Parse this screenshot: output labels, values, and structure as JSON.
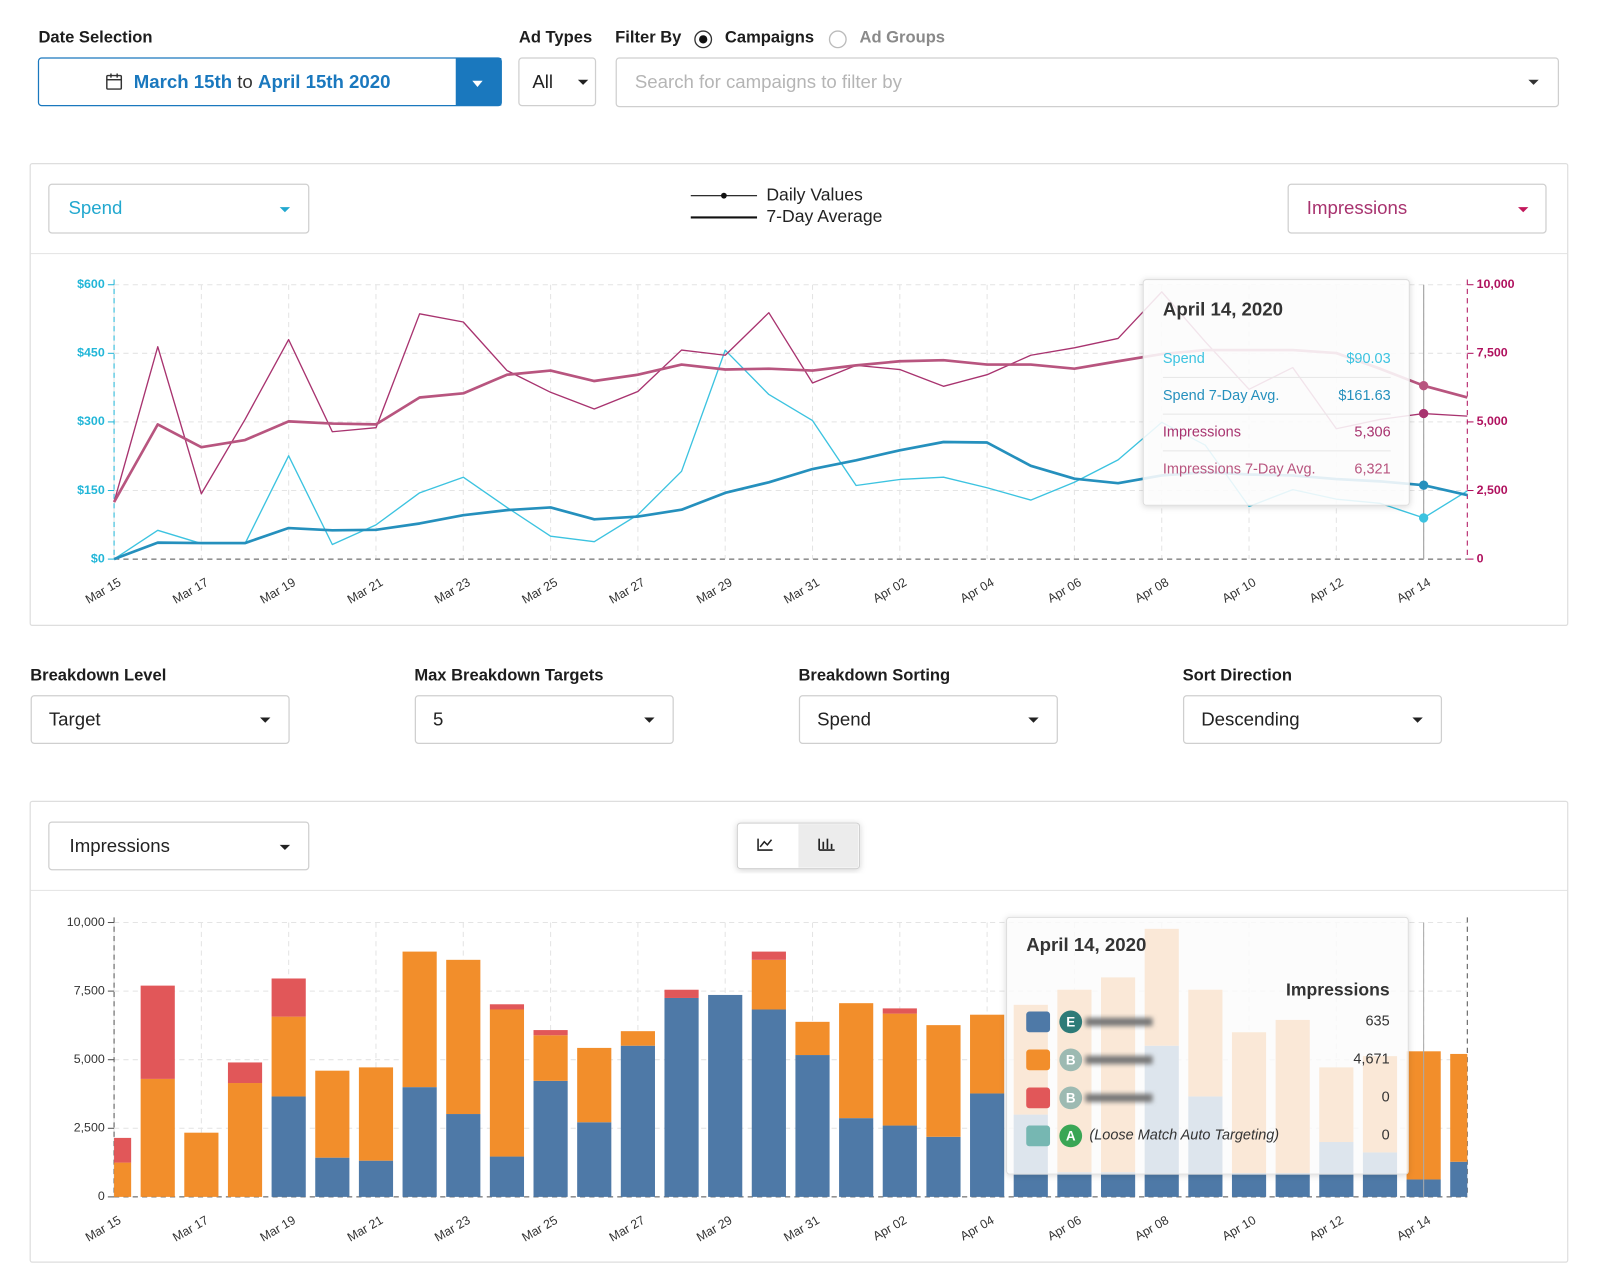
{
  "controls": {
    "date_selection": {
      "label": "Date Selection",
      "start": "March 15th",
      "separator": "to",
      "end": "April 15th 2020"
    },
    "ad_types": {
      "label": "Ad Types",
      "value": "All"
    },
    "filter_by": {
      "label": "Filter By",
      "options": [
        "Campaigns",
        "Ad Groups"
      ],
      "selected": 0,
      "placeholder": "Search for campaigns to filter by"
    },
    "breakdown": [
      {
        "label": "Breakdown Level",
        "value": "Target"
      },
      {
        "label": "Max Breakdown Targets",
        "value": "5"
      },
      {
        "label": "Breakdown Sorting",
        "value": "Spend"
      },
      {
        "label": "Sort Direction",
        "value": "Descending"
      }
    ]
  },
  "chart_data": [
    {
      "type": "line",
      "metric_left": "Spend",
      "metric_right": "Impressions",
      "legend": [
        "Daily Values",
        "7-Day Average"
      ],
      "categories": [
        "Mar 15",
        null,
        "Mar 17",
        null,
        "Mar 19",
        null,
        "Mar 21",
        null,
        "Mar 23",
        null,
        "Mar 25",
        null,
        "Mar 27",
        null,
        "Mar 29",
        null,
        "Mar 31",
        null,
        "Apr 02",
        null,
        "Apr 04",
        null,
        "Apr 06",
        null,
        "Apr 08",
        null,
        "Apr 10",
        null,
        "Apr 12",
        null,
        "Apr 14",
        null
      ],
      "series": [
        {
          "name": "Spend",
          "color": "#3cc3e0",
          "values": [
            0,
            63,
            34,
            34,
            226,
            32,
            75,
            145,
            179,
            113,
            50,
            38,
            97,
            192,
            457,
            360,
            303,
            161,
            174,
            179,
            156,
            129,
            168,
            217,
            299,
            249,
            115,
            152,
            131,
            122,
            90.03,
            149
          ]
        },
        {
          "name": "Spend 7-Day Avg.",
          "color": "#2590bd",
          "values": [
            0,
            36,
            35,
            35,
            68,
            63,
            64,
            78,
            96,
            107,
            113,
            87,
            93,
            108,
            145,
            168,
            197,
            216,
            238,
            256,
            255,
            204,
            176,
            166,
            183,
            190,
            185,
            183,
            175,
            170,
            161.63,
            140
          ]
        },
        {
          "name": "Impressions",
          "color": "#a8336f",
          "axis": "y2",
          "values": [
            2080,
            7740,
            2380,
            5090,
            8000,
            4640,
            4790,
            8940,
            8640,
            6870,
            6080,
            5470,
            6110,
            7620,
            7430,
            8980,
            6420,
            7060,
            6910,
            6300,
            6720,
            7430,
            7700,
            8040,
            9740,
            7920,
            6190,
            6980,
            4750,
            5090,
            5306,
            5210
          ]
        },
        {
          "name": "Impressions 7-Day Avg.",
          "color": "#b8557f",
          "axis": "y2",
          "values": [
            2080,
            4910,
            4080,
            4340,
            5020,
            4940,
            4910,
            5890,
            6040,
            6720,
            6870,
            6490,
            6720,
            7090,
            6910,
            6940,
            6870,
            7060,
            7210,
            7250,
            7090,
            7090,
            6940,
            7210,
            7470,
            7620,
            7620,
            7620,
            7510,
            6940,
            6321,
            5890
          ]
        }
      ],
      "ylim": [
        0,
        600
      ],
      "yticks": [
        {
          "value": 0,
          "label": "$0"
        },
        {
          "value": 150,
          "label": "$150"
        },
        {
          "value": 300,
          "label": "$300"
        },
        {
          "value": 450,
          "label": "$450"
        },
        {
          "value": 600,
          "label": "$600"
        }
      ],
      "y2lim": [
        0,
        10000
      ],
      "y2ticks": [
        0,
        {
          "value": 2500,
          "label": "2,500"
        },
        {
          "value": 5000,
          "label": "5,000"
        },
        {
          "value": 7500,
          "label": "7,500"
        },
        {
          "value": 10000,
          "label": "10,000"
        }
      ],
      "grid": true,
      "tooltip": {
        "title": "April 14, 2020",
        "values": [
          "$90.03",
          "$161.63",
          "5,306",
          "6,321"
        ]
      }
    },
    {
      "type": "bar",
      "stacked": true,
      "metric": "Impressions",
      "categories": [
        "Mar 15",
        null,
        "Mar 17",
        null,
        "Mar 19",
        null,
        "Mar 21",
        null,
        "Mar 23",
        null,
        "Mar 25",
        null,
        "Mar 27",
        null,
        "Mar 29",
        null,
        "Mar 31",
        null,
        "Apr 02",
        null,
        "Apr 04",
        null,
        "Apr 06",
        null,
        "Apr 08",
        null,
        "Apr 10",
        null,
        "Apr 12",
        null,
        "Apr 14",
        null
      ],
      "series": [
        {
          "badge": "E",
          "badge_color": "#2e7b78",
          "color": "#4e79a7",
          "values": [
            0,
            0,
            0,
            0,
            3660,
            1430,
            1320,
            4000,
            3020,
            1470,
            4230,
            2720,
            5510,
            7250,
            7360,
            6830,
            5170,
            2870,
            2600,
            2190,
            3770,
            3000,
            900,
            900,
            5510,
            3660,
            870,
            870,
            2000,
            1620,
            635,
            1280
          ]
        },
        {
          "badge": "B",
          "badge_color": "#9dbab2",
          "color": "#f28e2b",
          "values": [
            1250,
            4300,
            2340,
            4150,
            2910,
            3170,
            3400,
            4940,
            5620,
            5360,
            1660,
            2710,
            530,
            0,
            0,
            1810,
            1210,
            4190,
            4080,
            4070,
            2870,
            4000,
            6650,
            7100,
            4260,
            3890,
            5130,
            5580,
            2720,
            3510,
            4671,
            3930
          ]
        },
        {
          "badge": "B",
          "badge_color": "#9dbab2",
          "color": "#e15759",
          "values": [
            900,
            3400,
            0,
            750,
            1390,
            0,
            0,
            0,
            0,
            190,
            190,
            0,
            0,
            300,
            0,
            300,
            0,
            0,
            190,
            0,
            0,
            0,
            0,
            0,
            0,
            0,
            0,
            0,
            0,
            0,
            0,
            0
          ]
        },
        {
          "badge": "A",
          "badge_color": "#3aa655",
          "name": "(Loose Match Auto Targeting)",
          "color": "#76b7b2",
          "values": [
            0,
            0,
            0,
            0,
            0,
            0,
            0,
            0,
            0,
            0,
            0,
            0,
            0,
            0,
            0,
            0,
            0,
            0,
            0,
            0,
            0,
            0,
            0,
            0,
            0,
            0,
            0,
            0,
            0,
            0,
            0,
            0
          ]
        }
      ],
      "ylim": [
        0,
        10000
      ],
      "yticks": [
        0,
        {
          "value": 2500,
          "label": "2,500"
        },
        {
          "value": 5000,
          "label": "5,000"
        },
        {
          "value": 7500,
          "label": "7,500"
        },
        {
          "value": 10000,
          "label": "10,000"
        }
      ],
      "grid": true,
      "tooltip": {
        "title": "April 14, 2020",
        "header": "Impressions",
        "values": [
          "635",
          "4,671",
          "0",
          "0"
        ]
      }
    }
  ]
}
